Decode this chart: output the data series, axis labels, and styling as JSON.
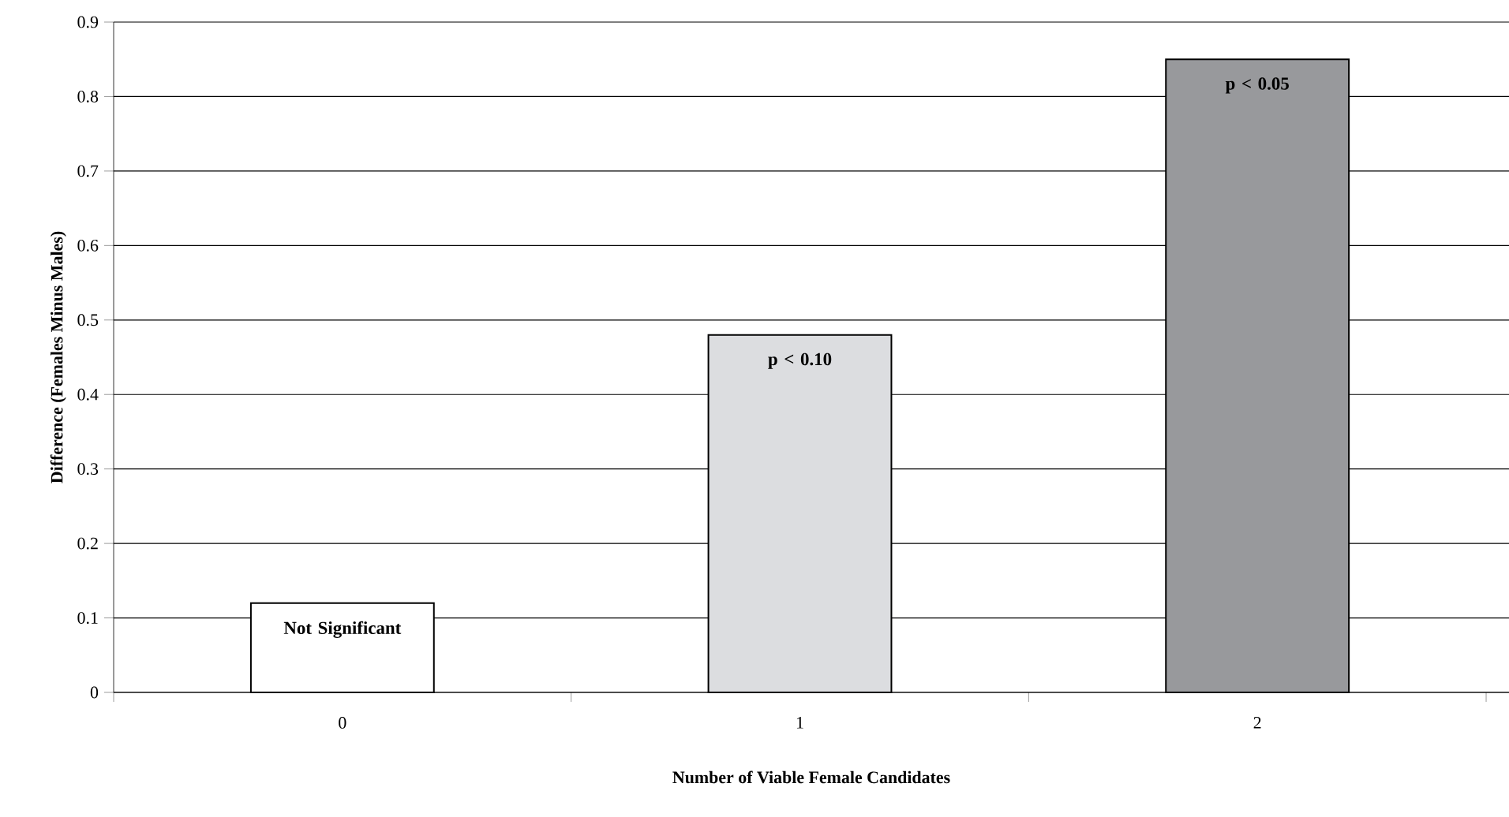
{
  "chart_data": {
    "type": "bar",
    "xlabel": "Number of Viable Female Candidates",
    "ylabel": "Difference (Females Minus Males)",
    "categories": [
      "0",
      "1",
      "2"
    ],
    "values": [
      0.12,
      0.48,
      0.85
    ],
    "colors": [
      "#ffffff",
      "#dcdde0",
      "#98999c"
    ],
    "ylim": [
      0,
      0.9
    ],
    "yticks": [
      0,
      0.1,
      0.2,
      0.3,
      0.4,
      0.5,
      0.6,
      0.7,
      0.8,
      0.9
    ],
    "grid": "y",
    "annotations": [
      {
        "text": "Not Significant",
        "x": "0",
        "y": 0.12
      },
      {
        "text": "p < 0.10",
        "x": "1",
        "y": 0.48
      },
      {
        "text": "p < 0.05",
        "x": "2",
        "y": 0.85
      }
    ]
  }
}
